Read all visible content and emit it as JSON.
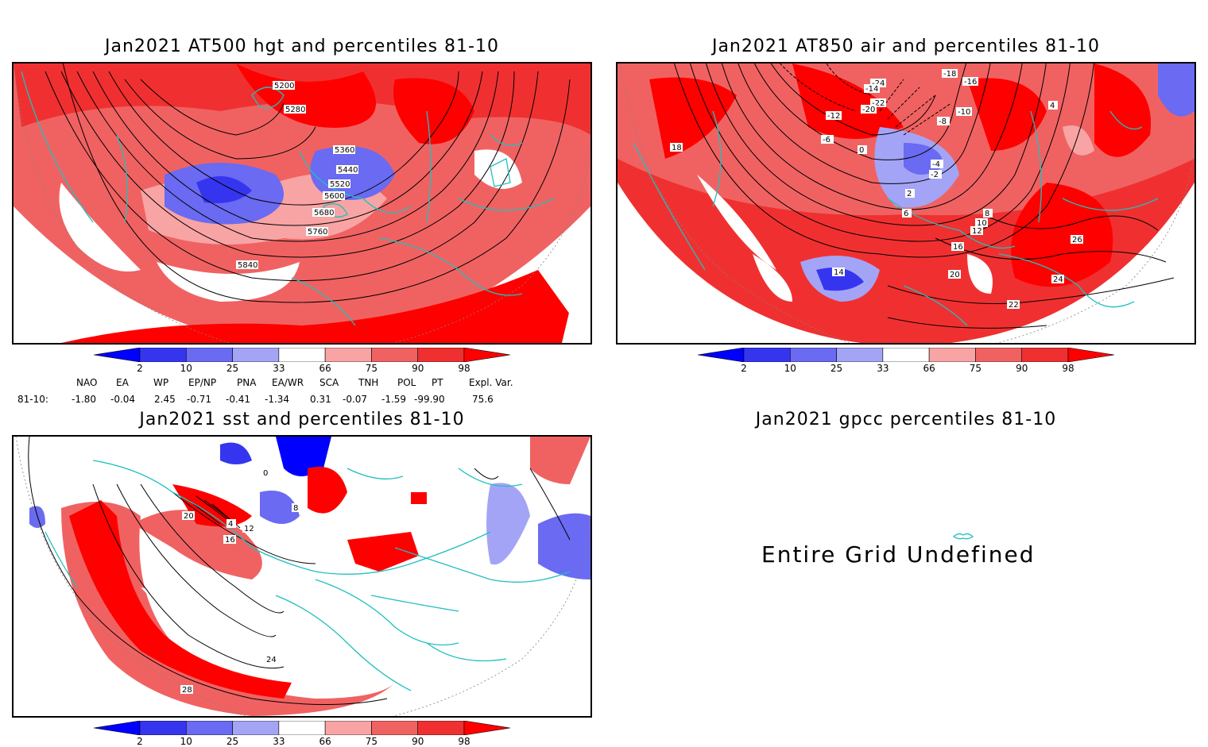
{
  "panels": {
    "hgt": {
      "title": "Jan2021 AT500 hgt and percentiles 81-10",
      "contour_labels": [
        "5200",
        "5280",
        "5360",
        "5440",
        "5520",
        "5600",
        "5680",
        "5760",
        "5840"
      ]
    },
    "air": {
      "title": "Jan2021 AT850 air and percentiles 81-10",
      "contour_labels": [
        "-24",
        "-22",
        "-20",
        "-18",
        "-16",
        "-14",
        "-12",
        "-10",
        "-8",
        "-6",
        "-4",
        "-2",
        "0",
        "2",
        "4",
        "6",
        "8",
        "10",
        "12",
        "14",
        "16",
        "18",
        "20",
        "22",
        "24",
        "26"
      ]
    },
    "sst": {
      "title": "Jan2021 sst and percentiles 81-10",
      "contour_labels": [
        "0",
        "4",
        "8",
        "12",
        "16",
        "20",
        "24",
        "28"
      ]
    },
    "gpcc": {
      "title": "Jan2021 gpcc percentiles 81-10",
      "message": "Entire Grid Undefined"
    }
  },
  "colorbar": {
    "labels": [
      "2",
      "10",
      "25",
      "33",
      "66",
      "75",
      "90",
      "98"
    ],
    "colors": [
      "#0000ff",
      "#3535f0",
      "#6a6af2",
      "#a4a4f6",
      "#ffffff",
      "#f8a4a4",
      "#f06262",
      "#f03030",
      "#ff0000"
    ]
  },
  "indices": {
    "names": [
      "NAO",
      "EA",
      "WP",
      "EP/NP",
      "PNA",
      "EA/WR",
      "SCA",
      "TNH",
      "POL",
      "PT",
      "Expl. Var."
    ],
    "row_label": "81-10:",
    "values": [
      "-1.80",
      "-0.04",
      "2.45",
      "-0.71",
      "-0.41",
      "-1.34",
      "0.31",
      "-0.07",
      "-1.59",
      "-99.90",
      "75.6"
    ]
  },
  "map_colors": {
    "coast": "#20c0c0",
    "contour": "#000000",
    "warm": "#f03030",
    "warm_light": "#f8a4a4",
    "cold": "#6a6af2",
    "cold_dark": "#0000ff"
  }
}
